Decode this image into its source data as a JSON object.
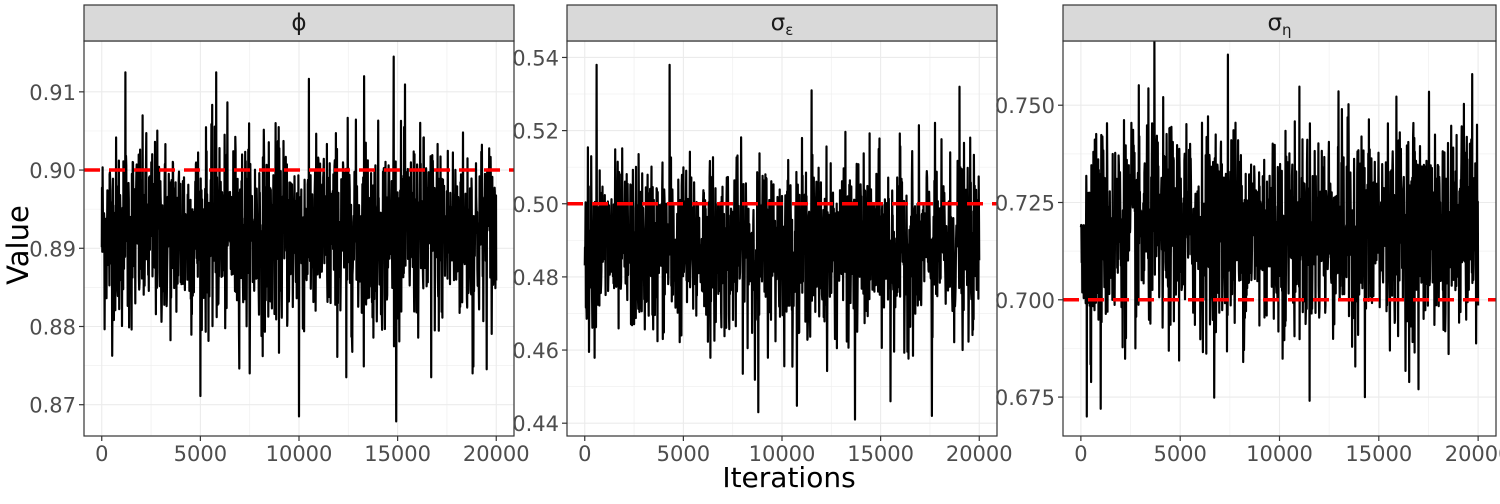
{
  "chart_data": {
    "type": "line",
    "xlabel": "Iterations",
    "ylabel": "Value",
    "reference_line": {
      "style": "dashed",
      "color": "#ff0000"
    },
    "trace_color": "#000000",
    "strip_color": "#d9d9d9",
    "grid": true,
    "x_range": [
      0,
      20000
    ],
    "x_ticks": [
      0,
      5000,
      10000,
      15000,
      20000
    ],
    "x_tick_labels": [
      "0",
      "5000",
      "10000",
      "15000",
      "20000"
    ],
    "facets": [
      {
        "title": "ϕ",
        "reference_value": 0.9,
        "ylim": [
          0.866,
          0.9165
        ],
        "y_ticks": [
          0.87,
          0.88,
          0.89,
          0.9,
          0.91
        ],
        "y_tick_labels": [
          "0.87",
          "0.88",
          "0.89",
          "0.90",
          "0.91"
        ],
        "series": {
          "center": 0.892,
          "typical_range": [
            0.88,
            0.904
          ],
          "extremes": [
            {
              "x": 10000,
              "y": 0.8685
            },
            {
              "x": 14800,
              "y": 0.9145
            },
            {
              "x": 1200,
              "y": 0.9125
            },
            {
              "x": 5800,
              "y": 0.9125
            },
            {
              "x": 13300,
              "y": 0.912
            },
            {
              "x": 7500,
              "y": 0.874
            },
            {
              "x": 12400,
              "y": 0.8735
            },
            {
              "x": 16700,
              "y": 0.8735
            },
            {
              "x": 18800,
              "y": 0.874
            }
          ]
        }
      },
      {
        "title": "σε",
        "title_main": "σ",
        "title_sub": "ε",
        "reference_value": 0.5,
        "ylim": [
          0.4365,
          0.5445
        ],
        "y_ticks": [
          0.44,
          0.46,
          0.48,
          0.5,
          0.52,
          0.54
        ],
        "y_tick_labels": [
          "0.44",
          "0.46",
          "0.48",
          "0.50",
          "0.52",
          "0.54"
        ],
        "series": {
          "center": 0.488,
          "typical_range": [
            0.466,
            0.512
          ],
          "extremes": [
            {
              "x": 600,
              "y": 0.538
            },
            {
              "x": 4300,
              "y": 0.538
            },
            {
              "x": 13700,
              "y": 0.441
            },
            {
              "x": 8800,
              "y": 0.443
            },
            {
              "x": 17600,
              "y": 0.442
            },
            {
              "x": 11500,
              "y": 0.531
            },
            {
              "x": 19000,
              "y": 0.532
            },
            {
              "x": 15500,
              "y": 0.446
            }
          ]
        }
      },
      {
        "title": "ση",
        "title_main": "σ",
        "title_sub": "η",
        "reference_value": 0.7,
        "ylim": [
          0.665,
          0.7665
        ],
        "y_ticks": [
          0.675,
          0.7,
          0.725,
          0.75
        ],
        "y_tick_labels": [
          "0.675",
          "0.700",
          "0.725",
          "0.750"
        ],
        "series": {
          "center": 0.718,
          "typical_range": [
            0.69,
            0.742
          ],
          "extremes": [
            {
              "x": 3700,
              "y": 0.7665
            },
            {
              "x": 7400,
              "y": 0.763
            },
            {
              "x": 300,
              "y": 0.67
            },
            {
              "x": 1000,
              "y": 0.672
            },
            {
              "x": 14300,
              "y": 0.675
            },
            {
              "x": 17000,
              "y": 0.677
            },
            {
              "x": 19700,
              "y": 0.758
            }
          ]
        }
      }
    ]
  }
}
